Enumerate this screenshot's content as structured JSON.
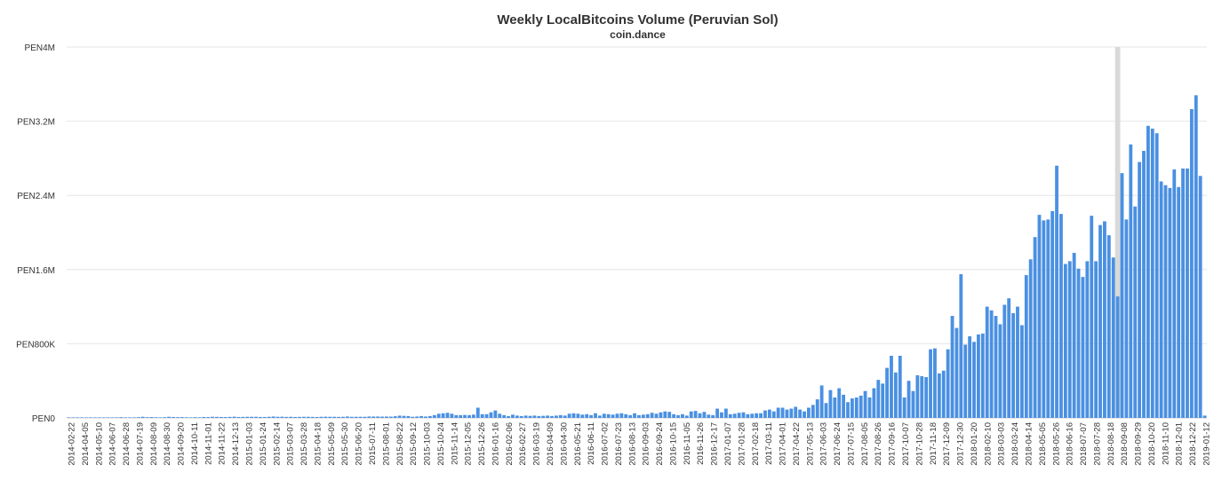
{
  "chart_data": {
    "type": "bar",
    "title": "Weekly LocalBitcoins Volume (Peruvian Sol)",
    "subtitle": "coin.dance",
    "y_unit_prefix": "PEN",
    "y_ticks": [
      "PEN0",
      "PEN800K",
      "PEN1.6M",
      "PEN2.4M",
      "PEN3.2M",
      "PEN4M"
    ],
    "ylim": [
      0,
      4000000
    ],
    "grid": true,
    "highlight_index": 241,
    "highlight_color": "#d9d9d9",
    "bar_color": "#4a90e2",
    "x_tick_labels": [
      "2014-02-22",
      "2014-04-05",
      "2014-05-10",
      "2014-06-07",
      "2014-06-28",
      "2014-07-19",
      "2014-08-09",
      "2014-08-30",
      "2014-09-20",
      "2014-10-11",
      "2014-11-01",
      "2014-11-22",
      "2014-12-13",
      "2015-01-03",
      "2015-01-24",
      "2015-02-14",
      "2015-03-07",
      "2015-03-28",
      "2015-04-18",
      "2015-05-09",
      "2015-05-30",
      "2015-06-20",
      "2015-07-11",
      "2015-08-01",
      "2015-08-22",
      "2015-09-12",
      "2015-10-03",
      "2015-10-24",
      "2015-11-14",
      "2015-12-05",
      "2015-12-26",
      "2016-01-16",
      "2016-02-06",
      "2016-02-27",
      "2016-03-19",
      "2016-04-09",
      "2016-04-30",
      "2016-05-21",
      "2016-06-11",
      "2016-07-02",
      "2016-07-23",
      "2016-08-13",
      "2016-09-03",
      "2016-09-24",
      "2016-10-15",
      "2016-11-05",
      "2016-11-26",
      "2016-12-17",
      "2017-01-07",
      "2017-01-28",
      "2017-02-18",
      "2017-03-11",
      "2017-04-01",
      "2017-04-22",
      "2017-05-13",
      "2017-06-03",
      "2017-06-24",
      "2017-07-15",
      "2017-08-05",
      "2017-08-26",
      "2017-09-16",
      "2017-10-07",
      "2017-10-28",
      "2017-11-18",
      "2017-12-09",
      "2017-12-30",
      "2018-01-20",
      "2018-02-10",
      "2018-03-03",
      "2018-03-24",
      "2018-04-14",
      "2018-05-05",
      "2018-05-26",
      "2018-06-16",
      "2018-07-07",
      "2018-07-28",
      "2018-08-18",
      "2018-09-08",
      "2018-09-29",
      "2018-10-20",
      "2018-11-10",
      "2018-12-01",
      "2018-12-22",
      "2019-01-12"
    ],
    "values": [
      5000,
      3000,
      2000,
      2000,
      3000,
      4000,
      3000,
      4000,
      3000,
      5000,
      4000,
      6000,
      8000,
      6000,
      5000,
      6000,
      8000,
      12000,
      8000,
      9000,
      7000,
      6000,
      8000,
      12000,
      10000,
      8000,
      9000,
      7000,
      6000,
      8000,
      7000,
      10000,
      9000,
      12000,
      11000,
      10000,
      9000,
      11000,
      13000,
      10000,
      11000,
      12000,
      12000,
      12000,
      10000,
      10000,
      12000,
      15000,
      12000,
      13000,
      11000,
      12000,
      10000,
      11000,
      12000,
      12000,
      11000,
      10000,
      12000,
      13000,
      12000,
      12000,
      11000,
      12000,
      15000,
      12000,
      12000,
      12000,
      12000,
      15000,
      15000,
      15000,
      14000,
      15000,
      14000,
      18000,
      24000,
      22000,
      20000,
      12000,
      15000,
      20000,
      15000,
      20000,
      30000,
      45000,
      50000,
      55000,
      45000,
      30000,
      30000,
      32000,
      30000,
      35000,
      110000,
      40000,
      40000,
      60000,
      80000,
      45000,
      30000,
      20000,
      35000,
      25000,
      20000,
      25000,
      22000,
      25000,
      20000,
      22000,
      25000,
      20000,
      25000,
      30000,
      25000,
      45000,
      50000,
      45000,
      35000,
      40000,
      30000,
      50000,
      25000,
      45000,
      40000,
      35000,
      45000,
      50000,
      40000,
      30000,
      50000,
      30000,
      35000,
      40000,
      55000,
      45000,
      60000,
      70000,
      65000,
      40000,
      30000,
      40000,
      25000,
      70000,
      75000,
      50000,
      65000,
      35000,
      30000,
      100000,
      60000,
      100000,
      40000,
      45000,
      55000,
      60000,
      40000,
      45000,
      50000,
      50000,
      80000,
      90000,
      70000,
      110000,
      110000,
      90000,
      100000,
      120000,
      90000,
      70000,
      110000,
      140000,
      200000,
      350000,
      160000,
      300000,
      220000,
      320000,
      250000,
      170000,
      210000,
      220000,
      240000,
      290000,
      220000,
      320000,
      410000,
      370000,
      540000,
      670000,
      490000,
      670000,
      220000,
      400000,
      290000,
      460000,
      450000,
      440000,
      740000,
      750000,
      480000,
      510000,
      740000,
      1100000,
      970000,
      1550000,
      790000,
      880000,
      820000,
      900000,
      910000,
      1200000,
      1160000,
      1100000,
      1010000,
      1220000,
      1290000,
      1130000,
      1200000,
      1000000,
      1540000,
      1710000,
      1950000,
      2190000,
      2130000,
      2140000,
      2230000,
      2720000,
      2200000,
      1660000,
      1690000,
      1780000,
      1610000,
      1520000,
      1690000,
      2180000,
      1690000,
      2080000,
      2120000,
      1970000,
      1730000,
      1310000,
      2640000,
      2140000,
      2950000,
      2280000,
      2760000,
      2880000,
      3150000,
      3120000,
      3070000,
      2550000,
      2510000,
      2480000,
      2680000,
      2490000,
      2690000,
      2690000,
      3330000,
      3480000,
      2610000,
      25000
    ]
  }
}
